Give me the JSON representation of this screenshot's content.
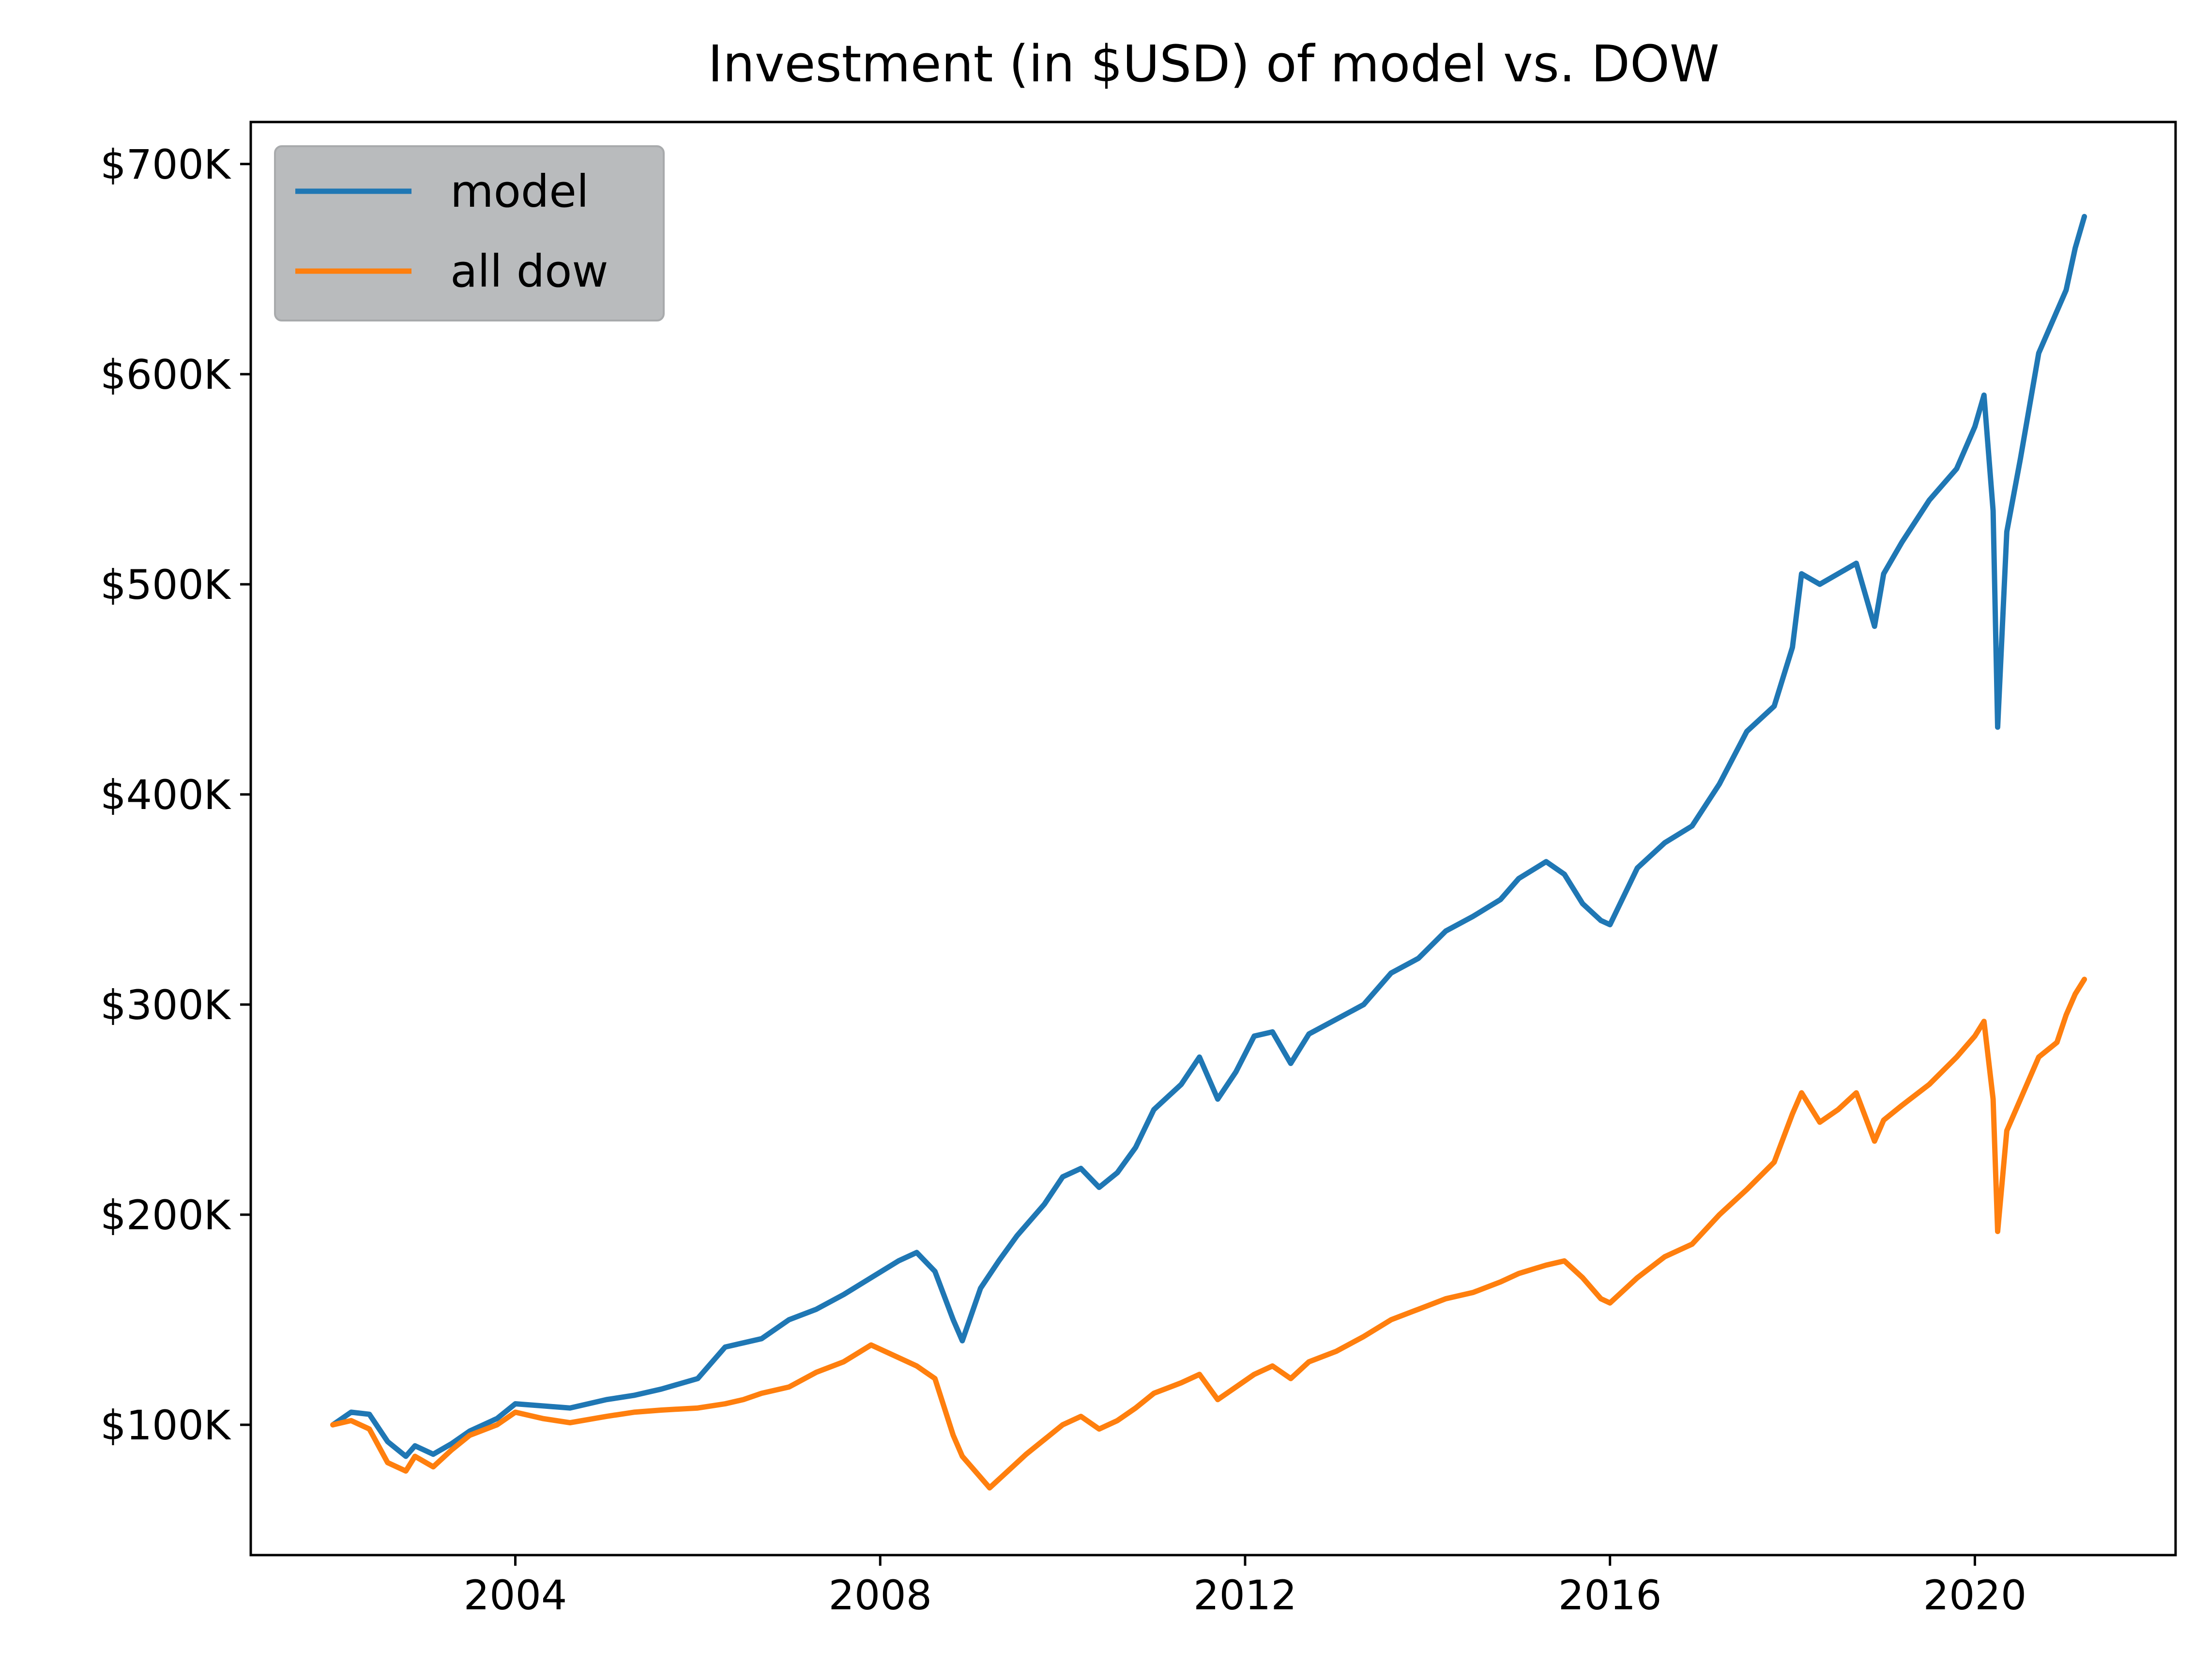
{
  "chart_data": {
    "type": "line",
    "title": "Investment (in $USD) of model vs. DOW",
    "xlabel": "",
    "ylabel": "",
    "xlim": [
      2001.1,
      2022.2
    ],
    "ylim": [
      38000,
      720000
    ],
    "xticks": [
      2004,
      2008,
      2012,
      2016,
      2020
    ],
    "xtick_labels": [
      "2004",
      "2008",
      "2012",
      "2016",
      "2020"
    ],
    "yticks": [
      100000,
      200000,
      300000,
      400000,
      500000,
      600000,
      700000
    ],
    "ytick_labels": [
      "$100K",
      "$200K",
      "$300K",
      "$400K",
      "$500K",
      "$600K",
      "$700K"
    ],
    "grid": false,
    "legend": {
      "position": "top-left",
      "background": "#b9bbbd"
    },
    "series": [
      {
        "name": "model",
        "color": "#1f77b4",
        "x": [
          2002.0,
          2002.2,
          2002.4,
          2002.6,
          2002.8,
          2002.9,
          2003.1,
          2003.3,
          2003.5,
          2003.8,
          2004.0,
          2004.3,
          2004.6,
          2005.0,
          2005.3,
          2005.6,
          2006.0,
          2006.3,
          2006.5,
          2006.7,
          2007.0,
          2007.3,
          2007.6,
          2007.9,
          2008.2,
          2008.4,
          2008.6,
          2008.8,
          2008.9,
          2009.1,
          2009.3,
          2009.5,
          2009.8,
          2010.0,
          2010.2,
          2010.4,
          2010.6,
          2010.8,
          2011.0,
          2011.3,
          2011.5,
          2011.7,
          2011.9,
          2012.1,
          2012.3,
          2012.5,
          2012.7,
          2013.0,
          2013.3,
          2013.6,
          2013.9,
          2014.2,
          2014.5,
          2014.8,
          2015.0,
          2015.3,
          2015.5,
          2015.7,
          2015.9,
          2016.0,
          2016.3,
          2016.6,
          2016.9,
          2017.2,
          2017.5,
          2017.8,
          2018.0,
          2018.1,
          2018.3,
          2018.5,
          2018.7,
          2018.9,
          2019.0,
          2019.2,
          2019.5,
          2019.8,
          2020.0,
          2020.1,
          2020.2,
          2020.25,
          2020.35,
          2020.5,
          2020.7,
          2020.9,
          2021.0,
          2021.1,
          2021.2
        ],
        "y": [
          100000,
          106000,
          105000,
          92000,
          85000,
          90000,
          86000,
          91000,
          97000,
          103000,
          110000,
          109000,
          108000,
          112000,
          114000,
          117000,
          122000,
          137000,
          139000,
          141000,
          150000,
          155000,
          162000,
          170000,
          178000,
          182000,
          173000,
          150000,
          140000,
          165000,
          178000,
          190000,
          205000,
          218000,
          222000,
          213000,
          220000,
          232000,
          250000,
          262000,
          275000,
          255000,
          268000,
          285000,
          287000,
          272000,
          286000,
          293000,
          300000,
          315000,
          322000,
          335000,
          342000,
          350000,
          360000,
          368000,
          362000,
          348000,
          340000,
          338000,
          365000,
          377000,
          385000,
          405000,
          430000,
          442000,
          470000,
          505000,
          500000,
          505000,
          510000,
          480000,
          505000,
          520000,
          540000,
          555000,
          575000,
          590000,
          535000,
          432000,
          525000,
          560000,
          610000,
          630000,
          640000,
          660000,
          675000
        ]
      },
      {
        "name": "all dow",
        "color": "#ff7f0e",
        "x": [
          2002.0,
          2002.2,
          2002.4,
          2002.6,
          2002.8,
          2002.9,
          2003.1,
          2003.3,
          2003.5,
          2003.8,
          2004.0,
          2004.3,
          2004.6,
          2005.0,
          2005.3,
          2005.6,
          2006.0,
          2006.3,
          2006.5,
          2006.7,
          2007.0,
          2007.3,
          2007.6,
          2007.9,
          2008.2,
          2008.4,
          2008.6,
          2008.8,
          2008.9,
          2009.1,
          2009.2,
          2009.4,
          2009.6,
          2009.8,
          2010.0,
          2010.2,
          2010.4,
          2010.6,
          2010.8,
          2011.0,
          2011.3,
          2011.5,
          2011.7,
          2011.9,
          2012.1,
          2012.3,
          2012.5,
          2012.7,
          2013.0,
          2013.3,
          2013.6,
          2013.9,
          2014.2,
          2014.5,
          2014.8,
          2015.0,
          2015.3,
          2015.5,
          2015.7,
          2015.9,
          2016.0,
          2016.3,
          2016.6,
          2016.9,
          2017.2,
          2017.5,
          2017.8,
          2018.0,
          2018.1,
          2018.3,
          2018.5,
          2018.7,
          2018.9,
          2019.0,
          2019.2,
          2019.5,
          2019.8,
          2020.0,
          2020.1,
          2020.2,
          2020.25,
          2020.35,
          2020.5,
          2020.7,
          2020.9,
          2021.0,
          2021.1,
          2021.2
        ],
        "y": [
          100000,
          102000,
          98000,
          82000,
          78000,
          85000,
          80000,
          88000,
          95000,
          100000,
          106000,
          103000,
          101000,
          104000,
          106000,
          107000,
          108000,
          110000,
          112000,
          115000,
          118000,
          125000,
          130000,
          138000,
          132000,
          128000,
          122000,
          95000,
          85000,
          75000,
          70000,
          78000,
          86000,
          93000,
          100000,
          104000,
          98000,
          102000,
          108000,
          115000,
          120000,
          124000,
          112000,
          118000,
          124000,
          128000,
          122000,
          130000,
          135000,
          142000,
          150000,
          155000,
          160000,
          163000,
          168000,
          172000,
          176000,
          178000,
          170000,
          160000,
          158000,
          170000,
          180000,
          186000,
          200000,
          212000,
          225000,
          248000,
          258000,
          244000,
          250000,
          258000,
          235000,
          245000,
          252000,
          262000,
          275000,
          285000,
          292000,
          255000,
          192000,
          240000,
          255000,
          275000,
          282000,
          295000,
          305000,
          312000
        ]
      }
    ]
  }
}
